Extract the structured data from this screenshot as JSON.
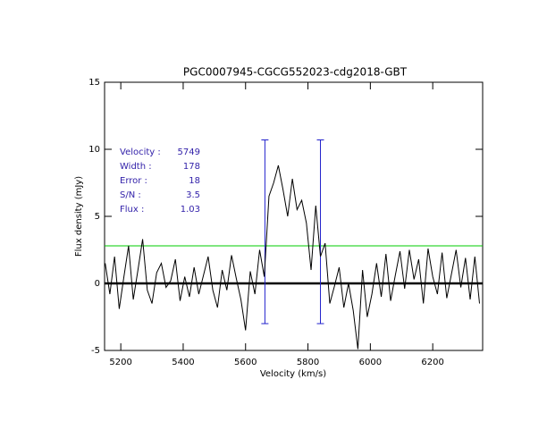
{
  "chart_data": {
    "type": "line",
    "title": "PGC0007945-CGCG552023-cdg2018-GBT",
    "x_label": "Velocity (km/s)",
    "y_label": "Flux density (mJy)",
    "color": "#000000",
    "x": [
      5150,
      5165,
      5180,
      5195,
      5210,
      5225,
      5240,
      5255,
      5270,
      5285,
      5300,
      5315,
      5330,
      5345,
      5360,
      5375,
      5390,
      5405,
      5420,
      5435,
      5450,
      5465,
      5480,
      5495,
      5510,
      5525,
      5540,
      5555,
      5570,
      5585,
      5600,
      5615,
      5630,
      5645,
      5660,
      5675,
      5690,
      5705,
      5720,
      5735,
      5750,
      5765,
      5780,
      5795,
      5810,
      5825,
      5840,
      5855,
      5870,
      5885,
      5900,
      5915,
      5930,
      5945,
      5960,
      5975,
      5990,
      6005,
      6020,
      6035,
      6050,
      6065,
      6080,
      6095,
      6110,
      6125,
      6140,
      6155,
      6170,
      6185,
      6200,
      6215,
      6230,
      6245,
      6260,
      6275,
      6290,
      6305,
      6320,
      6335,
      6350
    ],
    "values": [
      1.5,
      -0.8,
      2.0,
      -1.9,
      0.5,
      2.8,
      -1.2,
      1.0,
      3.3,
      -0.5,
      -1.5,
      0.8,
      1.5,
      -0.3,
      0.2,
      1.8,
      -1.3,
      0.5,
      -1.0,
      1.2,
      -0.8,
      0.6,
      2.0,
      -0.5,
      -1.8,
      1.0,
      -0.5,
      2.1,
      0.4,
      -1.2,
      -3.5,
      0.9,
      -0.8,
      2.5,
      0.5,
      6.5,
      7.5,
      8.8,
      7.0,
      5.0,
      7.8,
      5.5,
      6.2,
      4.5,
      1.0,
      5.8,
      2.0,
      3.0,
      -1.5,
      -0.2,
      1.2,
      -1.8,
      0.0,
      -2.0,
      -4.9,
      1.0,
      -2.5,
      -0.8,
      1.5,
      -1.0,
      2.2,
      -1.3,
      0.6,
      2.4,
      -0.4,
      2.5,
      0.3,
      1.8,
      -1.5,
      2.6,
      0.5,
      -0.8,
      2.3,
      -1.1,
      0.7,
      2.5,
      -0.3,
      1.9,
      -1.2,
      2.0,
      -1.5
    ],
    "xlim": [
      5148,
      6360
    ],
    "xticks": [
      5200,
      5400,
      5600,
      5800,
      6000,
      6200
    ],
    "ylim": [
      -5,
      15
    ],
    "yticks": [
      -5,
      0,
      5,
      10,
      15
    ],
    "rms_line": {
      "value": 2.8,
      "color": "#00cc00"
    },
    "zero_line": {
      "value": 0,
      "color": "#000000"
    },
    "markers": {
      "x": [
        5662,
        5840
      ],
      "y": [
        -3,
        10.7
      ],
      "color": "#2222cc"
    },
    "annotations": [
      {
        "label": "Velocity :",
        "value": 5749
      },
      {
        "label": "Width :",
        "value": 178
      },
      {
        "label": "Error :",
        "value": 18
      },
      {
        "label": "S/N :",
        "value": 3.5
      },
      {
        "label": "Flux :",
        "value": 1.03
      }
    ]
  }
}
